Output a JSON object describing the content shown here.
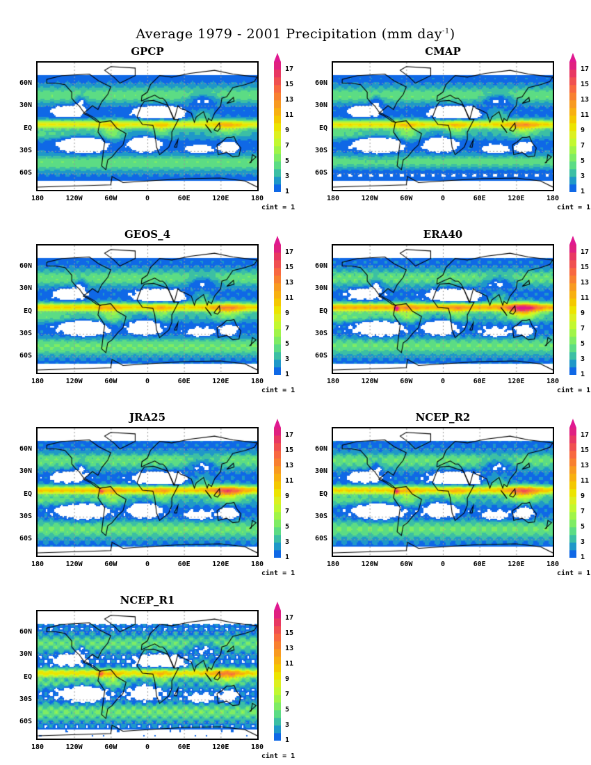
{
  "title": {
    "text": "Average 1979 - 2001 Precipitation (mm day",
    "sup": "-1",
    "close": ")"
  },
  "axes": {
    "yticks": [
      "60N",
      "30N",
      "EQ",
      "30S",
      "60S"
    ],
    "xticks": [
      "180",
      "120W",
      "60W",
      "0",
      "60E",
      "120E",
      "180"
    ]
  },
  "colorbar": {
    "labels": [
      "1",
      "3",
      "5",
      "7",
      "9",
      "11",
      "13",
      "15",
      "17"
    ],
    "colors": [
      "#0f68e6",
      "#1f98c8",
      "#3cbfa4",
      "#5cdc84",
      "#7eec64",
      "#a0f448",
      "#c2f830",
      "#dcf020",
      "#ece400",
      "#f4c800",
      "#f8b010",
      "#f89a20",
      "#f88030",
      "#f86840",
      "#f05050",
      "#e83862",
      "#e02080"
    ],
    "over_color": "#e01890",
    "cint": "cint = 1"
  },
  "panels": [
    {
      "name": "GPCP"
    },
    {
      "name": "CMAP"
    },
    {
      "name": "GEOS_4"
    },
    {
      "name": "ERA40"
    },
    {
      "name": "JRA25"
    },
    {
      "name": "NCEP_R2"
    },
    {
      "name": "NCEP_R1"
    }
  ]
}
